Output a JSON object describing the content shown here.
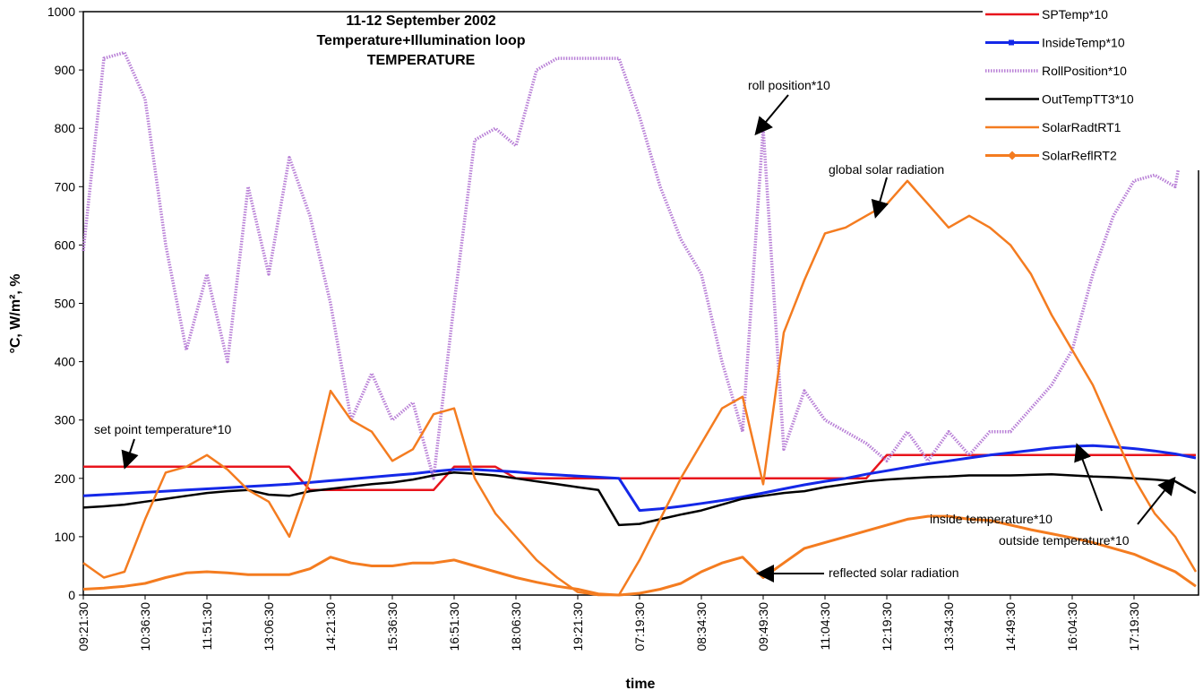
{
  "chart_data": {
    "type": "line",
    "title": [
      "11-12 September 2002",
      "Temperature+Illumination loop",
      "TEMPERATURE"
    ],
    "x_label": "time",
    "y_label": "°C, W/m², %",
    "categories": [
      "09:21:30",
      null,
      null,
      "10:36:30",
      null,
      null,
      "11:51:30",
      null,
      null,
      "13:06:30",
      null,
      null,
      "14:21:30",
      null,
      null,
      "15:36:30",
      null,
      null,
      "16:51:30",
      null,
      null,
      "18:06:30",
      null,
      null,
      "19:21:30",
      null,
      null,
      "07:19:30",
      null,
      null,
      "08:34:30",
      null,
      null,
      "09:49:30",
      null,
      null,
      "11:04:30",
      null,
      null,
      "12:19:30",
      null,
      null,
      "13:34:30",
      null,
      null,
      "14:49:30",
      null,
      null,
      "16:04:30",
      null,
      null,
      "17:19:30",
      null,
      null,
      null
    ],
    "ylim": [
      0,
      1000
    ],
    "yticks": [
      0,
      100,
      200,
      300,
      400,
      500,
      600,
      700,
      800,
      900,
      1000
    ],
    "legend": "top-right",
    "series": [
      {
        "name": "SPTemp*10",
        "color": "#e8141c",
        "values": [
          220,
          220,
          220,
          220,
          220,
          220,
          220,
          220,
          220,
          220,
          220,
          180,
          180,
          180,
          180,
          180,
          180,
          180,
          220,
          220,
          220,
          200,
          200,
          200,
          200,
          200,
          200,
          200,
          200,
          200,
          200,
          200,
          200,
          200,
          200,
          200,
          200,
          200,
          200,
          240,
          240,
          240,
          240,
          240,
          240,
          240,
          240,
          240,
          240,
          240,
          240,
          240,
          240,
          240,
          240
        ]
      },
      {
        "name": "InsideTemp*10",
        "color": "#1428e8",
        "marker": "square",
        "values": [
          170,
          172,
          174,
          176,
          178,
          180,
          182,
          184,
          186,
          188,
          190,
          193,
          196,
          199,
          202,
          205,
          208,
          212,
          215,
          215,
          213,
          211,
          208,
          206,
          204,
          202,
          200,
          145,
          148,
          152,
          157,
          162,
          168,
          175,
          182,
          189,
          195,
          200,
          207,
          213,
          219,
          225,
          230,
          235,
          240,
          244,
          248,
          252,
          255,
          256,
          254,
          251,
          247,
          242,
          235
        ]
      },
      {
        "name": "RollPosition*10",
        "color": "#b87fd6",
        "values": [
          590,
          920,
          930,
          850,
          600,
          420,
          550,
          400,
          700,
          550,
          750,
          650,
          500,
          300,
          380,
          300,
          330,
          200,
          500,
          780,
          800,
          770,
          900,
          920,
          920,
          920,
          920,
          820,
          700,
          610,
          550,
          400,
          280,
          800,
          250,
          350,
          300,
          280,
          260,
          230,
          280,
          230,
          280,
          240,
          280,
          280,
          320,
          360,
          420,
          550,
          650,
          710,
          720,
          700,
          900
        ]
      },
      {
        "name": "OutTempTT3*10",
        "color": "#000000",
        "values": [
          150,
          152,
          155,
          160,
          165,
          170,
          175,
          178,
          180,
          172,
          170,
          178,
          182,
          186,
          190,
          193,
          198,
          205,
          210,
          208,
          205,
          200,
          195,
          190,
          185,
          180,
          120,
          122,
          130,
          138,
          145,
          155,
          165,
          170,
          175,
          178,
          185,
          190,
          195,
          198,
          200,
          202,
          203,
          205,
          205,
          205,
          206,
          207,
          205,
          203,
          202,
          200,
          198,
          195,
          175
        ]
      },
      {
        "name": "SolarRadtRT1",
        "color": "#f47c20",
        "values": [
          55,
          30,
          40,
          130,
          210,
          220,
          240,
          215,
          180,
          160,
          100,
          200,
          350,
          300,
          280,
          230,
          250,
          310,
          320,
          200,
          140,
          100,
          60,
          30,
          5,
          0,
          0,
          60,
          130,
          200,
          260,
          320,
          340,
          190,
          450,
          540,
          620,
          630,
          650,
          670,
          710,
          670,
          630,
          650,
          630,
          600,
          550,
          480,
          420,
          360,
          280,
          200,
          140,
          100,
          40
        ]
      },
      {
        "name": "SolarReflRT2",
        "color": "#f47c20",
        "marker": "diamond",
        "values": [
          10,
          12,
          15,
          20,
          30,
          38,
          40,
          38,
          35,
          35,
          35,
          45,
          65,
          55,
          50,
          50,
          55,
          55,
          60,
          50,
          40,
          30,
          22,
          15,
          10,
          2,
          0,
          3,
          10,
          20,
          40,
          55,
          65,
          30,
          55,
          80,
          90,
          100,
          110,
          120,
          130,
          135,
          135,
          130,
          128,
          120,
          112,
          105,
          98,
          90,
          80,
          70,
          55,
          40,
          15
        ]
      }
    ],
    "annotations": [
      "roll position*10",
      "global solar radiation",
      "set point temperature*10",
      "inside temperature*10",
      "outside temperature*10",
      "reflected solar radiation"
    ]
  }
}
